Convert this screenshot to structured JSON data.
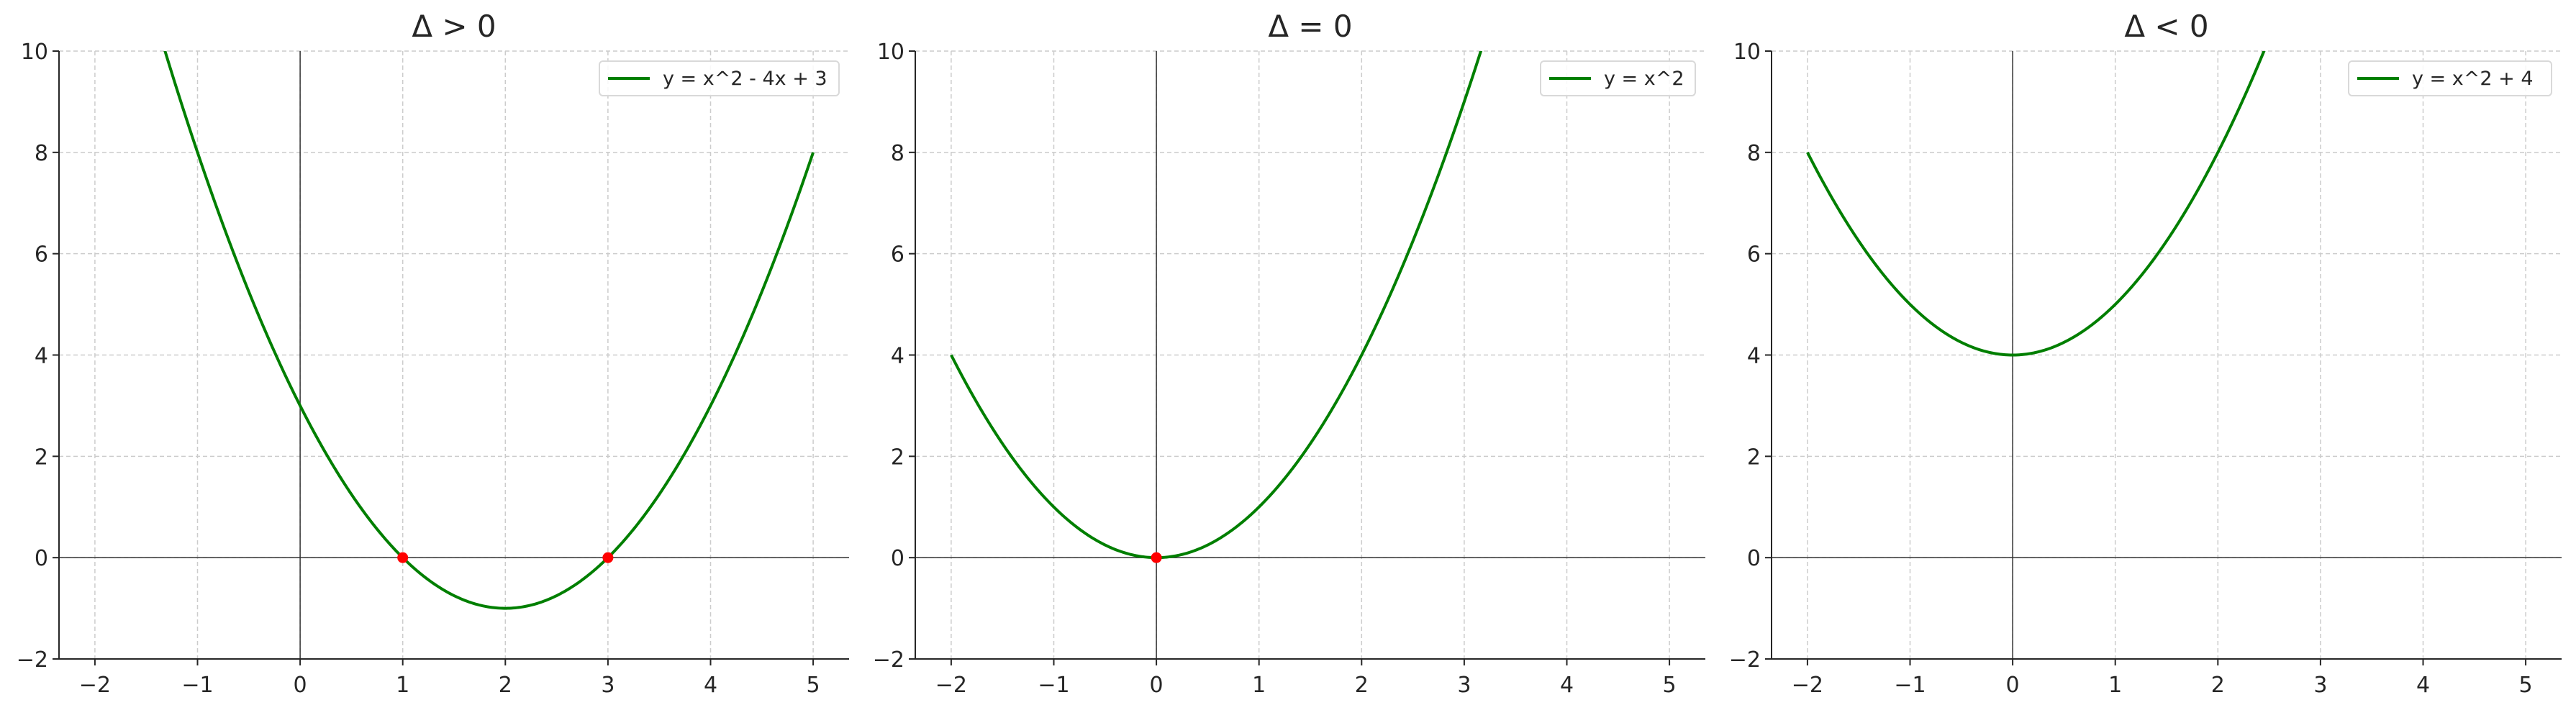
{
  "chart_data": [
    {
      "type": "line",
      "title": "Δ > 0",
      "xlim": [
        -2.35,
        5.35
      ],
      "ylim": [
        -2,
        10
      ],
      "xticks": [
        -2,
        -1,
        0,
        1,
        2,
        3,
        4,
        5
      ],
      "yticks": [
        -2,
        0,
        2,
        4,
        6,
        8,
        10
      ],
      "grid": true,
      "legend_position": "top-right",
      "series": [
        {
          "name": "y = x^2 - 4x + 3",
          "coeffs": [
            1,
            -4,
            3
          ],
          "x_range": [
            -2,
            5
          ],
          "color": "#007f00"
        }
      ],
      "roots": [
        [
          1,
          0
        ],
        [
          3,
          0
        ]
      ],
      "root_color": "#ff0000"
    },
    {
      "type": "line",
      "title": "Δ = 0",
      "xlim": [
        -2.35,
        5.35
      ],
      "ylim": [
        -2,
        10
      ],
      "xticks": [
        -2,
        -1,
        0,
        1,
        2,
        3,
        4,
        5
      ],
      "yticks": [
        -2,
        0,
        2,
        4,
        6,
        8,
        10
      ],
      "grid": true,
      "legend_position": "top-right",
      "series": [
        {
          "name": "y = x^2",
          "coeffs": [
            1,
            0,
            0
          ],
          "x_range": [
            -2,
            5
          ],
          "color": "#007f00"
        }
      ],
      "roots": [
        [
          0,
          0
        ]
      ],
      "root_color": "#ff0000"
    },
    {
      "type": "line",
      "title": "Δ < 0",
      "xlim": [
        -2.35,
        5.35
      ],
      "ylim": [
        -2,
        10
      ],
      "xticks": [
        -2,
        -1,
        0,
        1,
        2,
        3,
        4,
        5
      ],
      "yticks": [
        -2,
        0,
        2,
        4,
        6,
        8,
        10
      ],
      "grid": true,
      "legend_position": "top-right",
      "series": [
        {
          "name": "y = x^2 + 4",
          "coeffs": [
            1,
            0,
            4
          ],
          "x_range": [
            -2,
            5
          ],
          "color": "#007f00"
        }
      ],
      "roots": [],
      "root_color": "#ff0000"
    }
  ]
}
